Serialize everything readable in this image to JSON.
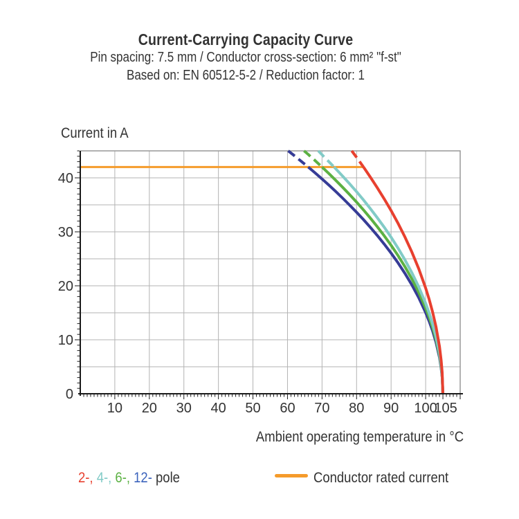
{
  "title": {
    "line1": "Current-Carrying Capacity Curve",
    "line2": "Pin spacing: 7.5 mm / Conductor cross-section: 6 mm² \"f-st\"",
    "line3": "Based on: EN 60512-5-2 / Reduction factor: 1"
  },
  "legend": {
    "poles": {
      "items": [
        {
          "text": "2-,",
          "color": "#E8402F"
        },
        {
          "text": "4-,",
          "color": "#82CBC7"
        },
        {
          "text": "6-,",
          "color": "#5CB143"
        },
        {
          "text": "12-",
          "color": "#3B63BC"
        }
      ],
      "suffix": "pole"
    },
    "rated": {
      "label": "Conductor rated current",
      "color": "#F59B2B"
    }
  },
  "chart_data": {
    "type": "line",
    "title": "Current-Carrying Capacity Curve",
    "subtitle": "Pin spacing: 7.5 mm / Conductor cross-section: 6 mm² \"f-st\"",
    "basis": "Based on: EN 60512-5-2 / Reduction factor: 1",
    "xlabel": "Ambient operating temperature in °C",
    "ylabel": "Current in A",
    "xlim": [
      0,
      110
    ],
    "ylim": [
      0,
      45
    ],
    "x_ticks": [
      10,
      20,
      30,
      40,
      50,
      60,
      70,
      80,
      90,
      100,
      105
    ],
    "y_ticks": [
      0,
      10,
      20,
      30,
      40
    ],
    "x_grid_step": 10,
    "y_grid_step": 5,
    "grid": true,
    "grid_color": "#B3B3B3",
    "border_color": "#979797",
    "axis_color": "#1A1A1A",
    "rated_current": {
      "label": "Conductor rated current",
      "value": 42,
      "x_start": 0,
      "x_end": 82,
      "color": "#F59B2B"
    },
    "curve_style_note": "dashed above rated current value, solid below",
    "series": [
      {
        "name": "2-pole",
        "color": "#E8402F",
        "points": [
          [
            78.6,
            45
          ],
          [
            80,
            43.79
          ],
          [
            82,
            42
          ],
          [
            84,
            40.13
          ],
          [
            86,
            38.17
          ],
          [
            88,
            36.1
          ],
          [
            90,
            33.92
          ],
          [
            92,
            31.58
          ],
          [
            94,
            29.05
          ],
          [
            96,
            26.27
          ],
          [
            98,
            23.17
          ],
          [
            100,
            19.58
          ],
          [
            101,
            17.52
          ],
          [
            102,
            15.17
          ],
          [
            103,
            12.39
          ],
          [
            104,
            8.76
          ],
          [
            104.5,
            6.19
          ],
          [
            104.8,
            3.92
          ],
          [
            105,
            0
          ]
        ]
      },
      {
        "name": "4-pole",
        "color": "#82CBC7",
        "points": [
          [
            68.9,
            45
          ],
          [
            70,
            44.28
          ],
          [
            72,
            42.99
          ],
          [
            73.5,
            42
          ],
          [
            76,
            40.3
          ],
          [
            78,
            38.88
          ],
          [
            80,
            37.42
          ],
          [
            82,
            35.9
          ],
          [
            84,
            34.3
          ],
          [
            86,
            32.62
          ],
          [
            88,
            30.86
          ],
          [
            90,
            28.99
          ],
          [
            92,
            26.99
          ],
          [
            94,
            24.82
          ],
          [
            96,
            22.45
          ],
          [
            98,
            19.8
          ],
          [
            100,
            16.74
          ],
          [
            101,
            14.97
          ],
          [
            102,
            12.96
          ],
          [
            103,
            10.58
          ],
          [
            104,
            7.48
          ],
          [
            104.5,
            5.29
          ],
          [
            104.8,
            3.35
          ],
          [
            105,
            0
          ]
        ]
      },
      {
        "name": "6-pole",
        "color": "#5CB143",
        "points": [
          [
            64.8,
            45
          ],
          [
            66,
            44.34
          ],
          [
            68,
            43.19
          ],
          [
            70,
            42
          ],
          [
            72,
            40.79
          ],
          [
            74,
            39.53
          ],
          [
            76,
            38.23
          ],
          [
            78,
            36.88
          ],
          [
            80,
            35.5
          ],
          [
            82,
            34.05
          ],
          [
            84,
            32.54
          ],
          [
            86,
            30.95
          ],
          [
            88,
            29.27
          ],
          [
            90,
            27.5
          ],
          [
            92,
            25.6
          ],
          [
            94,
            23.55
          ],
          [
            96,
            21.3
          ],
          [
            98,
            18.79
          ],
          [
            100,
            15.88
          ],
          [
            101,
            14.2
          ],
          [
            102,
            12.3
          ],
          [
            103,
            10.04
          ],
          [
            104,
            7.1
          ],
          [
            104.5,
            5.02
          ],
          [
            104.8,
            3.18
          ],
          [
            105,
            0
          ]
        ]
      },
      {
        "name": "12-pole",
        "color": "#363C96",
        "points": [
          [
            60.2,
            45
          ],
          [
            62,
            44.1
          ],
          [
            64,
            43.05
          ],
          [
            66,
            42
          ],
          [
            68,
            40.91
          ],
          [
            70,
            39.79
          ],
          [
            72,
            38.65
          ],
          [
            74,
            37.46
          ],
          [
            76,
            36.22
          ],
          [
            78,
            34.94
          ],
          [
            80,
            33.63
          ],
          [
            82,
            32.26
          ],
          [
            84,
            30.82
          ],
          [
            86,
            29.32
          ],
          [
            88,
            27.73
          ],
          [
            90,
            26.05
          ],
          [
            92,
            24.25
          ],
          [
            94,
            22.31
          ],
          [
            96,
            20.18
          ],
          [
            98,
            17.8
          ],
          [
            100,
            15.04
          ],
          [
            101,
            13.45
          ],
          [
            102,
            11.65
          ],
          [
            103,
            9.51
          ],
          [
            104,
            6.73
          ],
          [
            104.5,
            4.76
          ],
          [
            104.8,
            3.01
          ],
          [
            105,
            0
          ]
        ]
      }
    ]
  }
}
